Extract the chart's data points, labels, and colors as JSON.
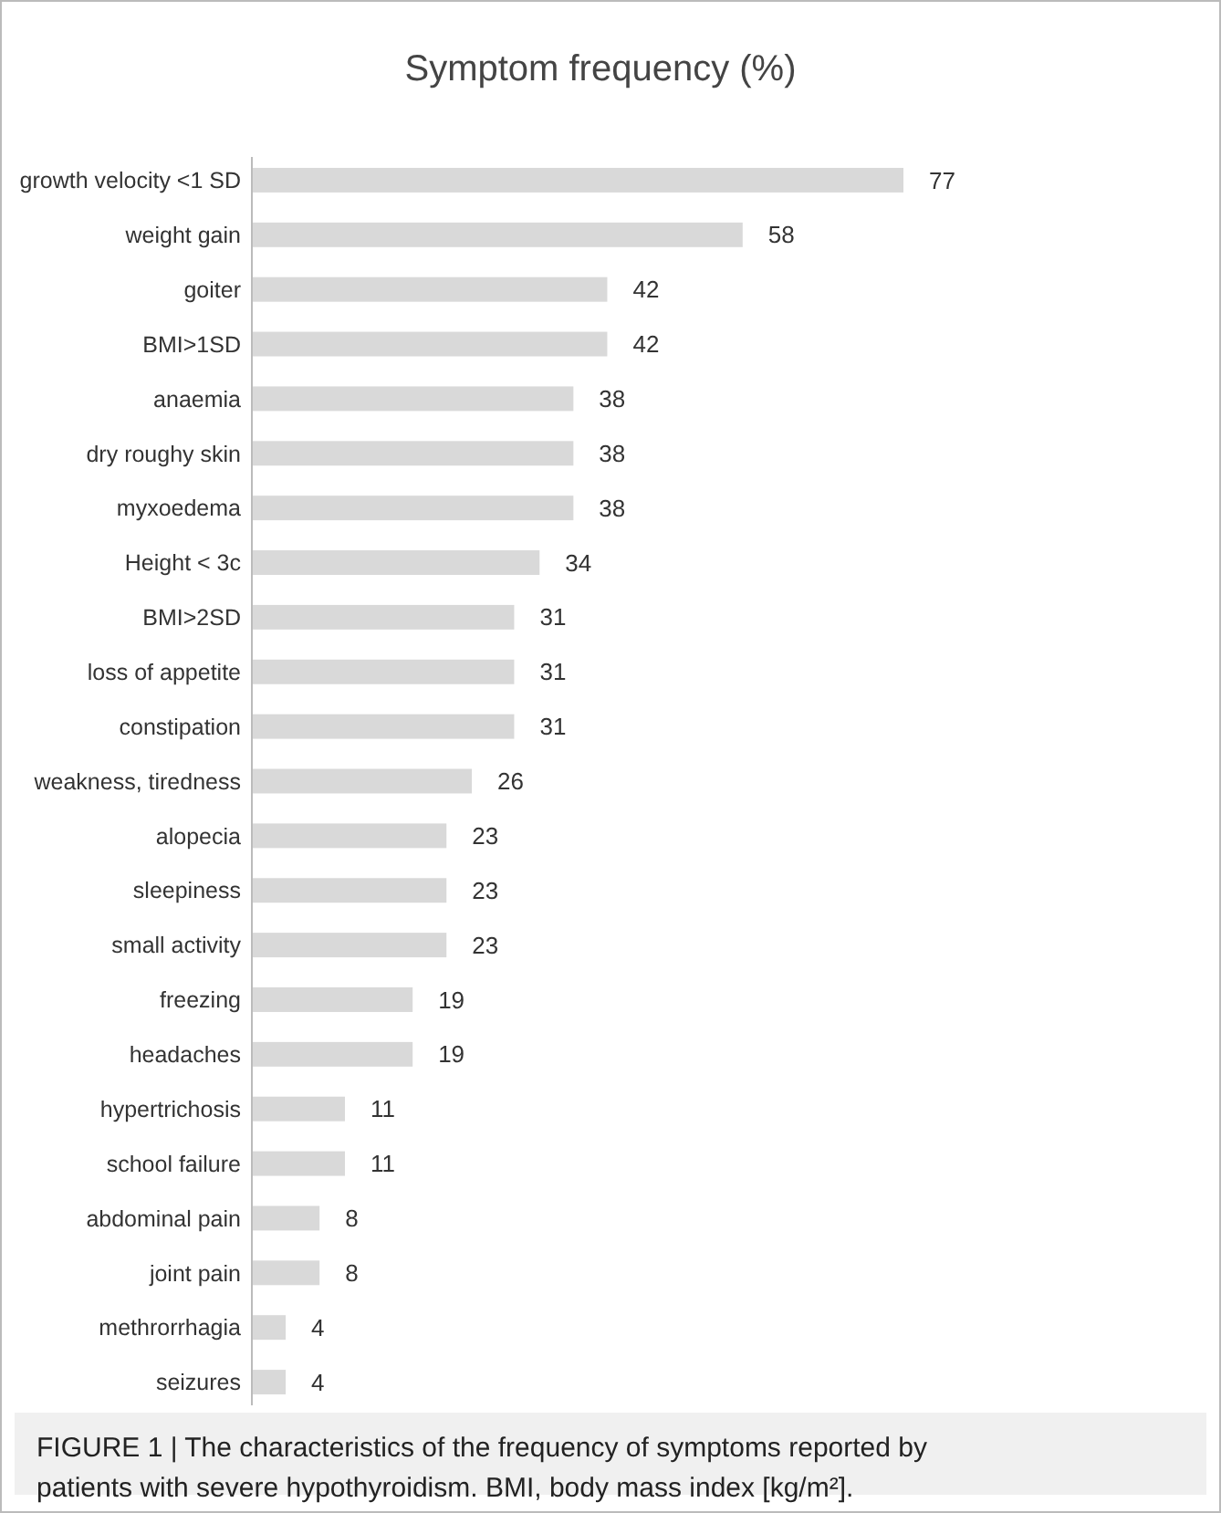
{
  "chart_data": {
    "type": "bar",
    "orientation": "horizontal",
    "relative": false,
    "title": "Symptom frequency (%)",
    "categories": [
      "growth velocity <1 SD",
      "weight gain",
      "goiter",
      "BMI>1SD",
      "anaemia",
      "dry roughy skin",
      "myxoedema",
      "Height < 3c",
      "BMI>2SD",
      "loss of appetite",
      "constipation",
      "weakness, tiredness",
      "alopecia",
      "sleepiness",
      "small activity",
      "freezing",
      "headaches",
      "hypertrichosis",
      "school failure",
      "abdominal pain",
      "joint pain",
      "methrorrhagia",
      "seizures"
    ],
    "values": [
      77,
      58,
      42,
      42,
      38,
      38,
      38,
      34,
      31,
      31,
      31,
      26,
      23,
      23,
      23,
      19,
      19,
      11,
      11,
      8,
      8,
      4,
      4
    ],
    "color": "#d9d9d9",
    "data_labels": true,
    "annotations": [
      "FIGURE 1 | The characteristics of the frequency of symptoms reported by patients with severe hypothyroidism. BMI, body mass index [kg/m²]."
    ]
  }
}
